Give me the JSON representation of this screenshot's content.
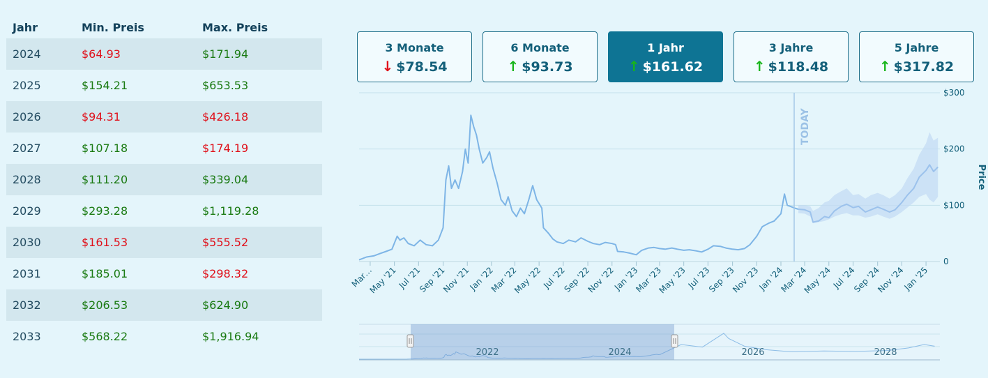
{
  "table": {
    "headers": [
      "Jahr",
      "Min. Preis",
      "Max. Preis"
    ],
    "rows": [
      {
        "year": "2024",
        "min": "$64.93",
        "max": "$171.94",
        "min_status": "red",
        "max_status": "green"
      },
      {
        "year": "2025",
        "min": "$154.21",
        "max": "$653.53",
        "min_status": "green",
        "max_status": "green"
      },
      {
        "year": "2026",
        "min": "$94.31",
        "max": "$426.18",
        "min_status": "red",
        "max_status": "red"
      },
      {
        "year": "2027",
        "min": "$107.18",
        "max": "$174.19",
        "min_status": "green",
        "max_status": "red"
      },
      {
        "year": "2028",
        "min": "$111.20",
        "max": "$339.04",
        "min_status": "green",
        "max_status": "green"
      },
      {
        "year": "2029",
        "min": "$293.28",
        "max": "$1,119.28",
        "min_status": "green",
        "max_status": "green"
      },
      {
        "year": "2030",
        "min": "$161.53",
        "max": "$555.52",
        "min_status": "red",
        "max_status": "red"
      },
      {
        "year": "2031",
        "min": "$185.01",
        "max": "$298.32",
        "min_status": "green",
        "max_status": "red"
      },
      {
        "year": "2032",
        "min": "$206.53",
        "max": "$624.90",
        "min_status": "green",
        "max_status": "green"
      },
      {
        "year": "2033",
        "min": "$568.22",
        "max": "$1,916.94",
        "min_status": "green",
        "max_status": "green"
      }
    ]
  },
  "colors": {
    "green": "#1a7a12",
    "red": "#e0101a",
    "accent": "#0e7494",
    "line": "#7eb5e6",
    "band": "#c2daf4"
  },
  "periods": [
    {
      "label": "3 Monate",
      "value": "$78.54",
      "direction": "down",
      "active": false
    },
    {
      "label": "6 Monate",
      "value": "$93.73",
      "direction": "up",
      "active": false
    },
    {
      "label": "1 Jahr",
      "value": "$161.62",
      "direction": "up",
      "active": true
    },
    {
      "label": "3 Jahre",
      "value": "$118.48",
      "direction": "up",
      "active": false
    },
    {
      "label": "5 Jahre",
      "value": "$317.82",
      "direction": "up",
      "active": false
    }
  ],
  "chart_data": {
    "type": "line",
    "y_axis_label": "Price",
    "y_ticks": [
      "0",
      "$100",
      "$200",
      "$300"
    ],
    "ylim": [
      0,
      300
    ],
    "x_tick_labels": [
      "Mar…",
      "May '21",
      "Jul '21",
      "Sep '21",
      "Nov '21",
      "Jan '22",
      "Mar '22",
      "May '22",
      "Jul '22",
      "Sep '22",
      "Nov '22",
      "Jan '23",
      "Mar '23",
      "May '23",
      "Jul '23",
      "Sep '23",
      "Nov '23",
      "Jan '24",
      "Mar '24",
      "May '24",
      "Jul '24",
      "Sep '24",
      "Nov '24",
      "Jan '25"
    ],
    "today_label": "TODAY",
    "today_date": "2024-02-14",
    "series": [
      {
        "values": [
          [
            "2021-02-01",
            3
          ],
          [
            "2021-02-20",
            8
          ],
          [
            "2021-03-10",
            10
          ],
          [
            "2021-03-25",
            14
          ],
          [
            "2021-04-10",
            18
          ],
          [
            "2021-04-25",
            22
          ],
          [
            "2021-05-08",
            45
          ],
          [
            "2021-05-15",
            38
          ],
          [
            "2021-05-25",
            42
          ],
          [
            "2021-06-05",
            32
          ],
          [
            "2021-06-20",
            28
          ],
          [
            "2021-07-05",
            38
          ],
          [
            "2021-07-20",
            30
          ],
          [
            "2021-08-05",
            28
          ],
          [
            "2021-08-20",
            38
          ],
          [
            "2021-09-01",
            60
          ],
          [
            "2021-09-08",
            145
          ],
          [
            "2021-09-15",
            170
          ],
          [
            "2021-09-22",
            130
          ],
          [
            "2021-10-01",
            145
          ],
          [
            "2021-10-10",
            130
          ],
          [
            "2021-10-20",
            160
          ],
          [
            "2021-10-27",
            200
          ],
          [
            "2021-11-03",
            175
          ],
          [
            "2021-11-10",
            260
          ],
          [
            "2021-11-17",
            240
          ],
          [
            "2021-11-24",
            225
          ],
          [
            "2021-12-01",
            200
          ],
          [
            "2021-12-10",
            175
          ],
          [
            "2021-12-20",
            185
          ],
          [
            "2021-12-27",
            195
          ],
          [
            "2022-01-05",
            165
          ],
          [
            "2022-01-15",
            140
          ],
          [
            "2022-01-25",
            110
          ],
          [
            "2022-02-05",
            100
          ],
          [
            "2022-02-12",
            115
          ],
          [
            "2022-02-22",
            90
          ],
          [
            "2022-03-05",
            80
          ],
          [
            "2022-03-15",
            95
          ],
          [
            "2022-03-25",
            85
          ],
          [
            "2022-04-05",
            110
          ],
          [
            "2022-04-15",
            135
          ],
          [
            "2022-04-25",
            110
          ],
          [
            "2022-05-08",
            95
          ],
          [
            "2022-05-12",
            60
          ],
          [
            "2022-05-25",
            50
          ],
          [
            "2022-06-05",
            40
          ],
          [
            "2022-06-15",
            35
          ],
          [
            "2022-07-01",
            32
          ],
          [
            "2022-07-15",
            38
          ],
          [
            "2022-08-01",
            35
          ],
          [
            "2022-08-15",
            42
          ],
          [
            "2022-09-01",
            36
          ],
          [
            "2022-09-15",
            32
          ],
          [
            "2022-10-01",
            30
          ],
          [
            "2022-10-15",
            34
          ],
          [
            "2022-11-01",
            32
          ],
          [
            "2022-11-10",
            30
          ],
          [
            "2022-11-15",
            18
          ],
          [
            "2022-12-01",
            17
          ],
          [
            "2022-12-15",
            15
          ],
          [
            "2023-01-01",
            12
          ],
          [
            "2023-01-15",
            20
          ],
          [
            "2023-02-01",
            24
          ],
          [
            "2023-02-15",
            25
          ],
          [
            "2023-03-01",
            23
          ],
          [
            "2023-03-15",
            22
          ],
          [
            "2023-04-01",
            24
          ],
          [
            "2023-04-15",
            22
          ],
          [
            "2023-05-01",
            20
          ],
          [
            "2023-05-15",
            21
          ],
          [
            "2023-06-01",
            19
          ],
          [
            "2023-06-15",
            17
          ],
          [
            "2023-07-01",
            22
          ],
          [
            "2023-07-15",
            28
          ],
          [
            "2023-08-01",
            27
          ],
          [
            "2023-08-15",
            24
          ],
          [
            "2023-09-01",
            22
          ],
          [
            "2023-09-15",
            21
          ],
          [
            "2023-10-01",
            23
          ],
          [
            "2023-10-15",
            30
          ],
          [
            "2023-11-01",
            45
          ],
          [
            "2023-11-15",
            62
          ],
          [
            "2023-12-01",
            68
          ],
          [
            "2023-12-15",
            72
          ],
          [
            "2024-01-01",
            85
          ],
          [
            "2024-01-10",
            120
          ],
          [
            "2024-01-17",
            100
          ],
          [
            "2024-01-25",
            98
          ],
          [
            "2024-02-05",
            95
          ],
          [
            "2024-02-14",
            93
          ]
        ]
      },
      {
        "name": "",
        "values": [
          [
            "2024-02-14",
            93
          ],
          [
            "2024-03-01",
            92
          ],
          [
            "2024-03-15",
            88
          ],
          [
            "2024-03-22",
            70
          ],
          [
            "2024-04-05",
            72
          ],
          [
            "2024-04-20",
            80
          ],
          [
            "2024-05-01",
            78
          ],
          [
            "2024-05-15",
            90
          ],
          [
            "2024-06-01",
            98
          ],
          [
            "2024-06-15",
            102
          ],
          [
            "2024-07-01",
            96
          ],
          [
            "2024-07-15",
            98
          ],
          [
            "2024-08-01",
            88
          ],
          [
            "2024-08-15",
            92
          ],
          [
            "2024-09-01",
            97
          ],
          [
            "2024-09-15",
            93
          ],
          [
            "2024-10-01",
            88
          ],
          [
            "2024-10-15",
            92
          ],
          [
            "2024-11-01",
            105
          ],
          [
            "2024-11-15",
            118
          ],
          [
            "2024-12-01",
            130
          ],
          [
            "2024-12-15",
            150
          ],
          [
            "2025-01-01",
            162
          ],
          [
            "2025-01-10",
            172
          ],
          [
            "2025-01-20",
            160
          ],
          [
            "2025-01-31",
            168
          ]
        ],
        "band_upper": [
          100,
          100,
          98,
          90,
          95,
          105,
          108,
          118,
          125,
          130,
          118,
          120,
          112,
          118,
          122,
          118,
          112,
          118,
          130,
          148,
          165,
          190,
          210,
          230,
          215,
          220
        ],
        "band_lower": [
          86,
          85,
          80,
          68,
          70,
          72,
          75,
          80,
          84,
          86,
          82,
          82,
          78,
          80,
          84,
          80,
          76,
          80,
          88,
          96,
          105,
          115,
          120,
          110,
          105,
          115
        ]
      }
    ],
    "navigator": {
      "labels": [
        "2022",
        "2024",
        "2026",
        "2028"
      ]
    }
  }
}
